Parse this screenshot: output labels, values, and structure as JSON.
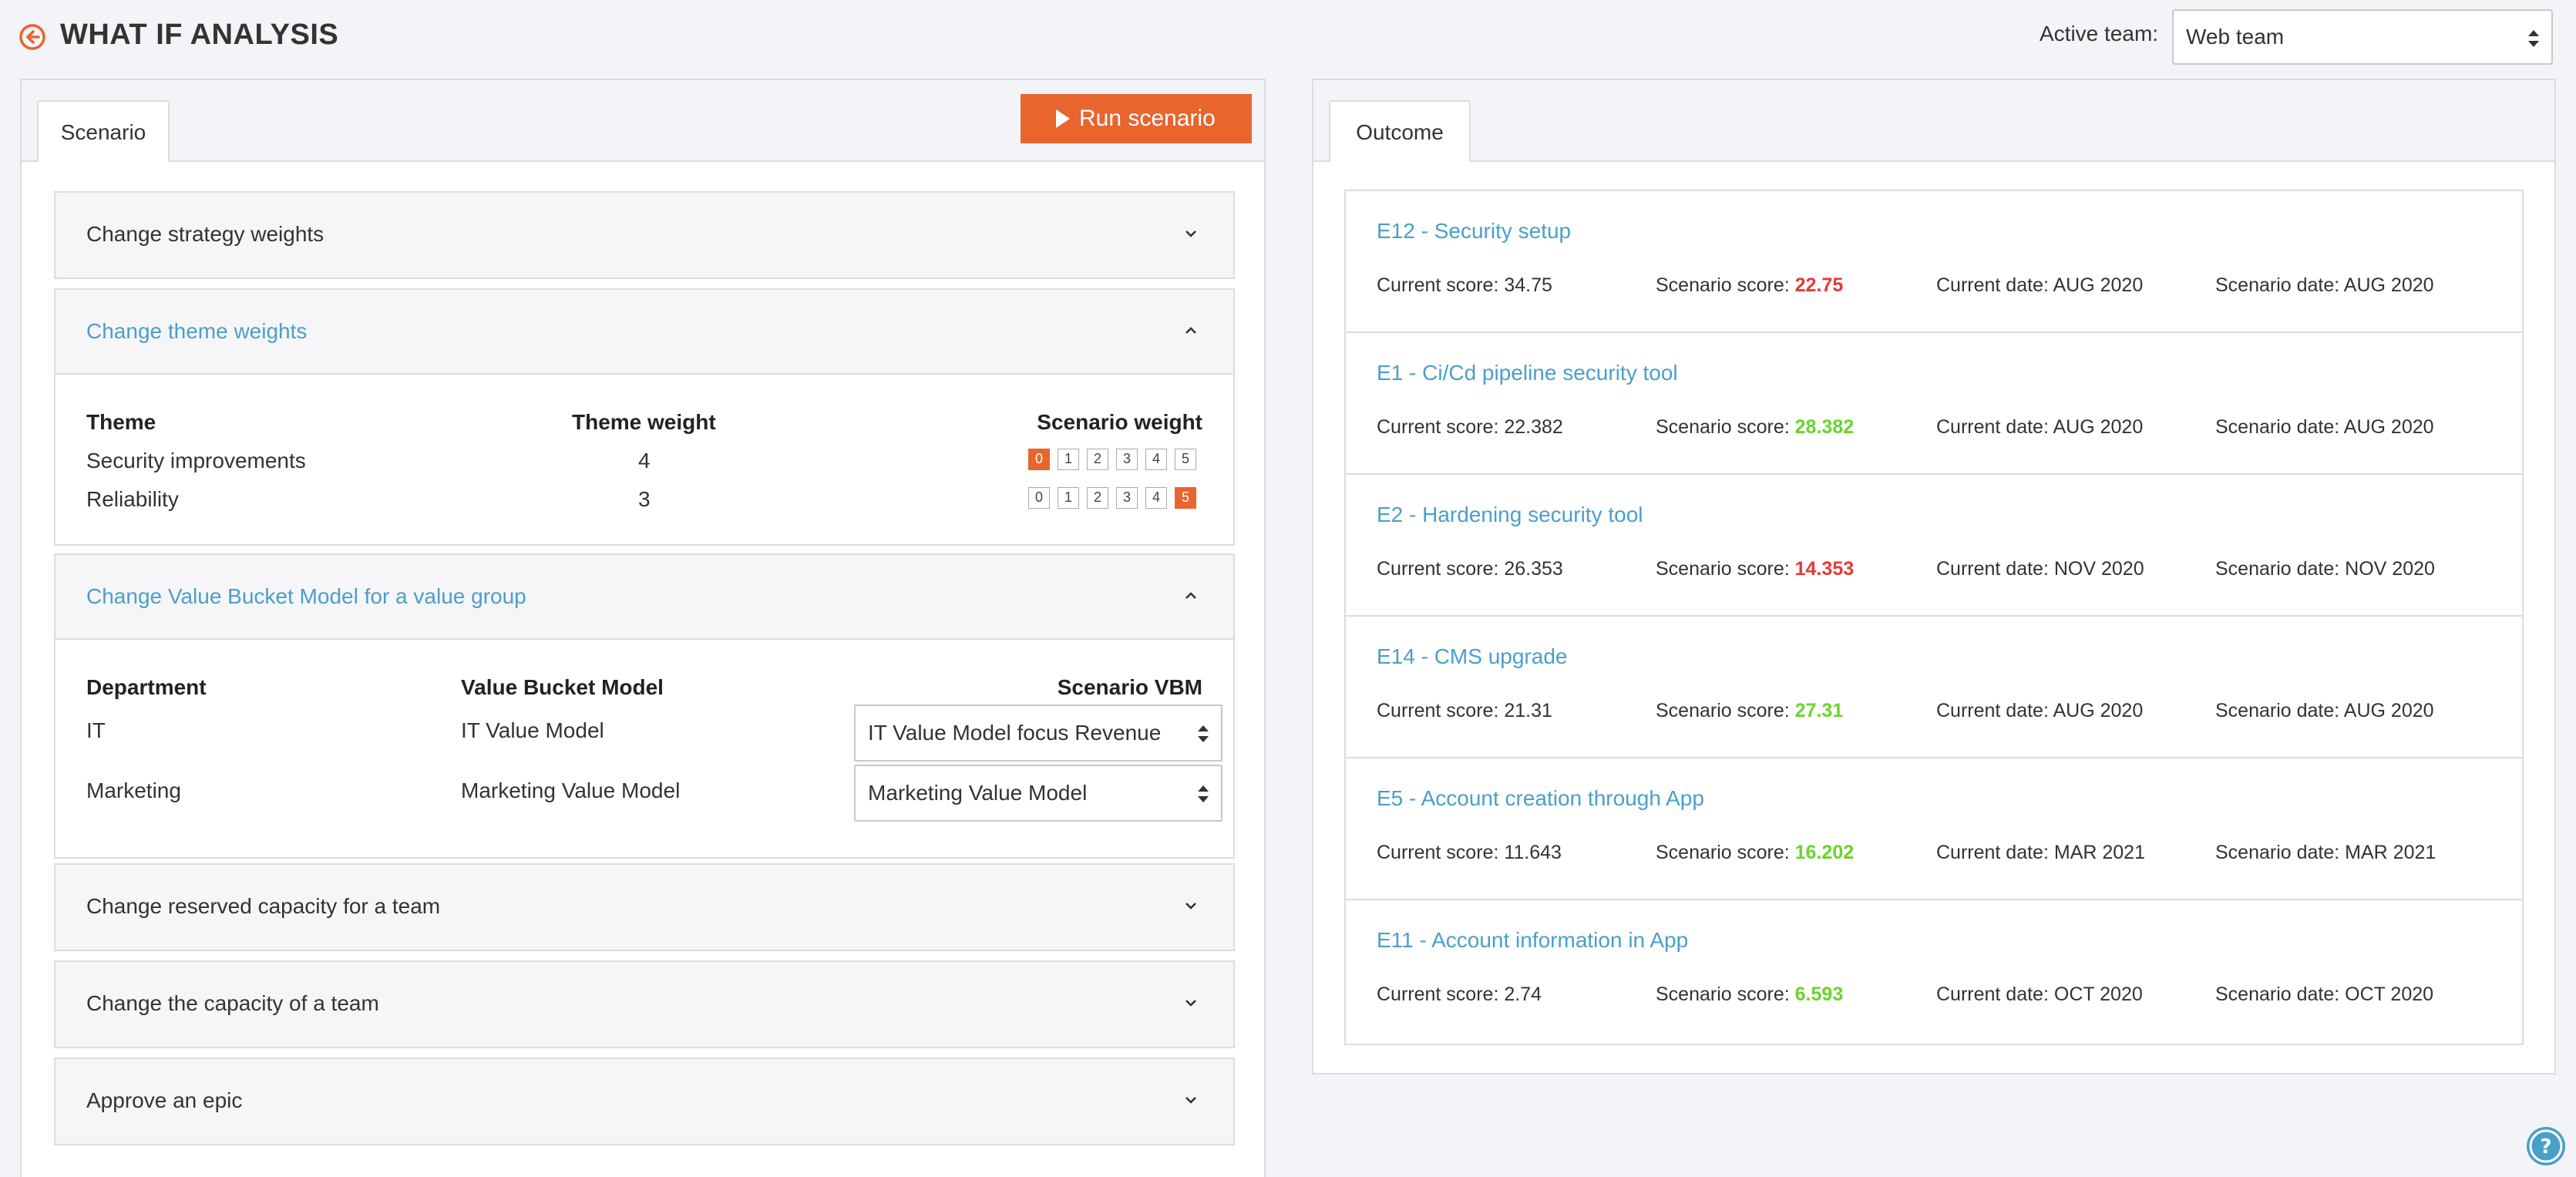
{
  "header": {
    "title": "WHAT IF ANALYSIS",
    "active_team_label": "Active team:",
    "active_team_value": "Web team"
  },
  "scenario": {
    "tab_label": "Scenario",
    "run_button_label": "Run scenario",
    "sections": {
      "strategy": {
        "title": "Change strategy weights"
      },
      "theme": {
        "title": "Change theme weights",
        "headers": {
          "theme": "Theme",
          "theme_weight": "Theme weight",
          "scenario_weight": "Scenario weight"
        },
        "rows": [
          {
            "theme": "Security improvements",
            "weight": "4",
            "options": [
              "0",
              "1",
              "2",
              "3",
              "4",
              "5"
            ],
            "selected": 0
          },
          {
            "theme": "Reliability",
            "weight": "3",
            "options": [
              "0",
              "1",
              "2",
              "3",
              "4",
              "5"
            ],
            "selected": 5
          }
        ]
      },
      "vbm": {
        "title": "Change Value Bucket Model for a value group",
        "headers": {
          "department": "Department",
          "model": "Value Bucket Model",
          "scenario_vbm": "Scenario VBM"
        },
        "rows": [
          {
            "department": "IT",
            "model": "IT Value Model",
            "scenario": "IT Value Model focus Revenue"
          },
          {
            "department": "Marketing",
            "model": "Marketing Value Model",
            "scenario": "Marketing Value Model"
          }
        ]
      },
      "reserved": {
        "title": "Change reserved capacity for a team"
      },
      "capacity": {
        "title": "Change the capacity of a team"
      },
      "approve": {
        "title": "Approve an epic"
      }
    }
  },
  "outcome": {
    "tab_label": "Outcome",
    "labels": {
      "current_score": "Current score:",
      "scenario_score": "Scenario score:",
      "current_date": "Current date:",
      "scenario_date": "Scenario date:"
    },
    "items": [
      {
        "title": "E12 - Security setup",
        "current_score": "34.75",
        "scenario_score": "22.75",
        "trend": "down",
        "current_date": "AUG 2020",
        "scenario_date": "AUG 2020"
      },
      {
        "title": "E1 - Ci/Cd pipeline security tool",
        "current_score": "22.382",
        "scenario_score": "28.382",
        "trend": "up",
        "current_date": "AUG 2020",
        "scenario_date": "AUG 2020"
      },
      {
        "title": "E2 - Hardening security tool",
        "current_score": "26.353",
        "scenario_score": "14.353",
        "trend": "down",
        "current_date": "NOV 2020",
        "scenario_date": "NOV 2020"
      },
      {
        "title": "E14 - CMS upgrade",
        "current_score": "21.31",
        "scenario_score": "27.31",
        "trend": "up",
        "current_date": "AUG 2020",
        "scenario_date": "AUG 2020"
      },
      {
        "title": "E5 - Account creation through App",
        "current_score": "11.643",
        "scenario_score": "16.202",
        "trend": "up",
        "current_date": "MAR 2021",
        "scenario_date": "MAR 2021"
      },
      {
        "title": "E11 - Account information in App",
        "current_score": "2.74",
        "scenario_score": "6.593",
        "trend": "up",
        "current_date": "OCT 2020",
        "scenario_date": "OCT 2020"
      }
    ]
  },
  "colors": {
    "accent": "#e8652e",
    "link": "#4a9fc9",
    "score_up": "#6ad42b",
    "score_down": "#e53935"
  },
  "icons": {
    "back": "back-circle-icon",
    "play": "play-icon",
    "chevron_down": "chevron-down-icon",
    "chevron_up": "chevron-up-icon",
    "select_arrows": "select-arrows-icon",
    "help": "help-icon"
  }
}
